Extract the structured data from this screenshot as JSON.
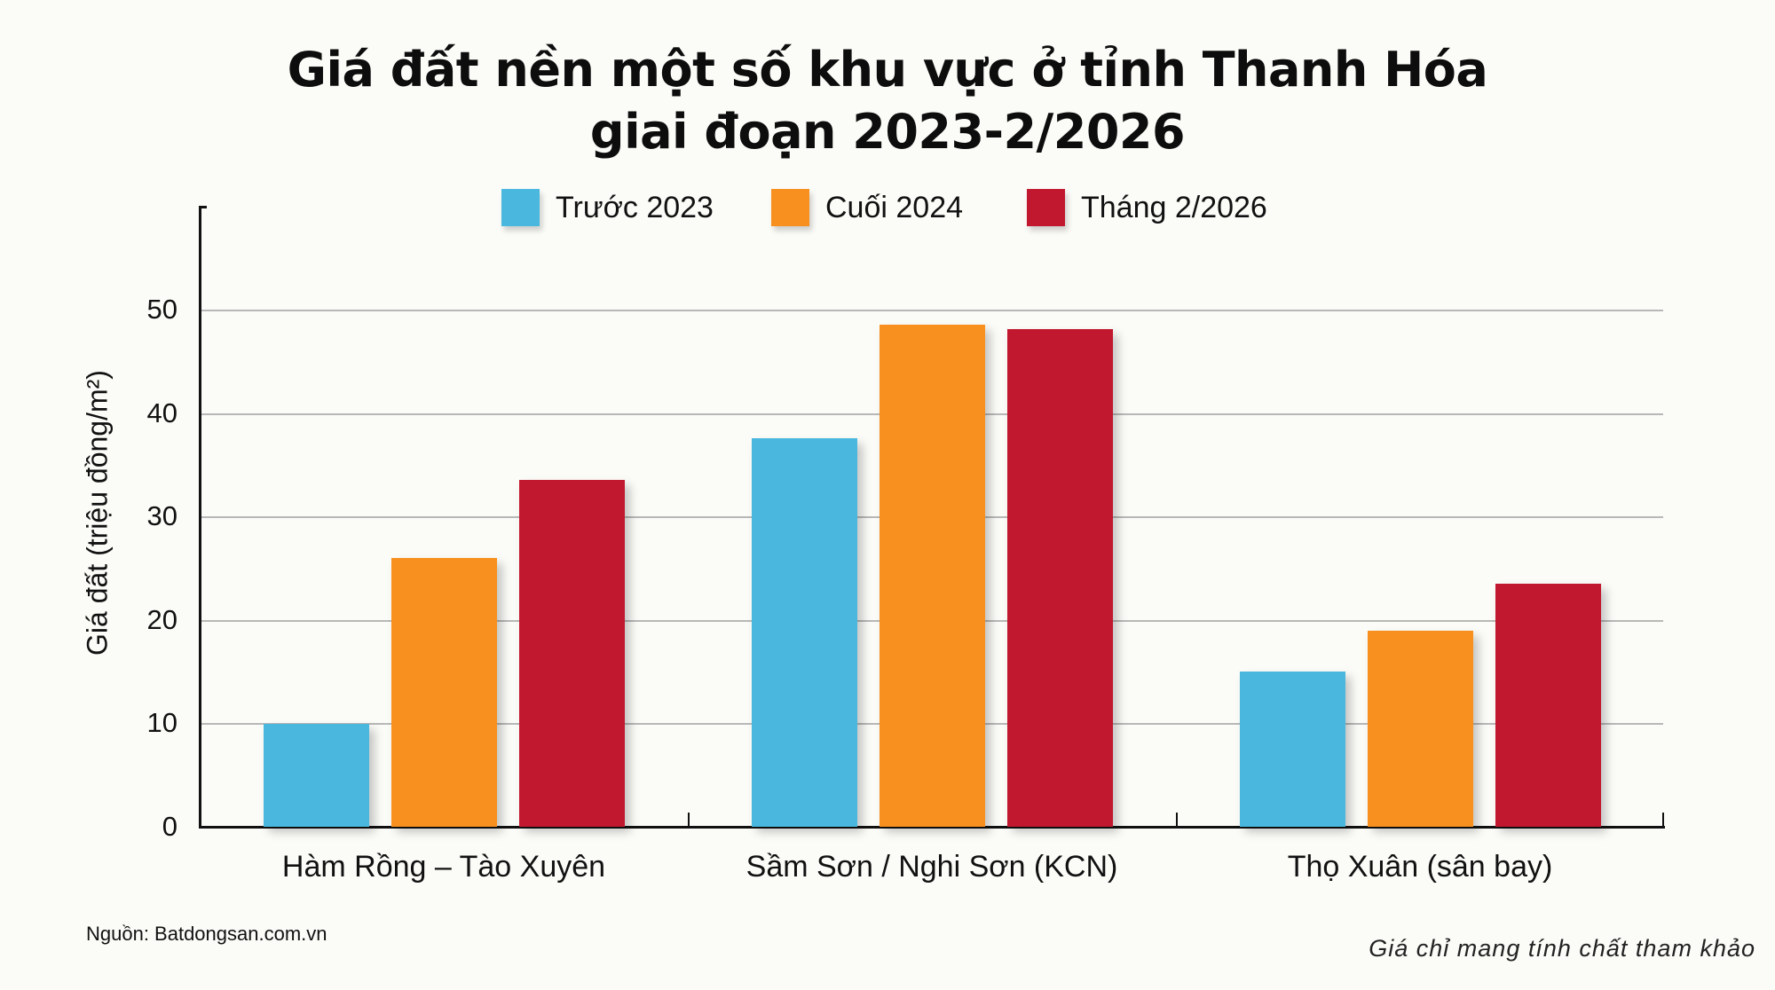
{
  "title": {
    "line1": "Giá đất nền một số khu vực ở tỉnh Thanh Hóa",
    "line2": "giai đoạn 2023-2/2026"
  },
  "legend": [
    {
      "label": "Trước 2023",
      "color": "#4ab8de"
    },
    {
      "label": "Cuối 2024",
      "color": "#f7901e"
    },
    {
      "label": "Tháng 2/2026",
      "color": "#c2182f"
    }
  ],
  "y_axis": {
    "title": "Giá đất (triệu đồng/m²)",
    "ticks": [
      "0",
      "10",
      "20",
      "30",
      "40",
      "50"
    ]
  },
  "x_axis": {
    "labels": [
      "Hàm Rồng – Tào Xuyên",
      "Sầm Sơn / Nghi Sơn (KCN)",
      "Thọ Xuân (sân bay)"
    ]
  },
  "footer": {
    "source": "Nguồn: Batdongsan.com.vn",
    "note": "Giá chỉ mang tính chất tham khảo"
  },
  "chart_data": {
    "type": "bar",
    "title": "Giá đất nền một số khu vực ở tỉnh Thanh Hóa giai đoạn 2023-2/2026",
    "xlabel": "",
    "ylabel": "Giá đất (triệu đồng/m²)",
    "categories": [
      "Hàm Rồng – Tào Xuyên",
      "Sầm Sơn / Nghi Sơn (KCN)",
      "Thọ Xuân (sân bay)"
    ],
    "series": [
      {
        "name": "Trước 2023",
        "color": "#4ab8de",
        "values": [
          10,
          37.6,
          15
        ]
      },
      {
        "name": "Cuối 2024",
        "color": "#f7901e",
        "values": [
          26,
          48.6,
          19
        ]
      },
      {
        "name": "Tháng 2/2026",
        "color": "#c2182f",
        "values": [
          33.6,
          48.2,
          23.5
        ]
      }
    ],
    "ylim": [
      0,
      60
    ],
    "yticks": [
      0,
      10,
      20,
      30,
      40,
      50
    ],
    "grid": true,
    "legend_position": "top",
    "annotations": [
      "Nguồn: Batdongsan.com.vn",
      "Giá chỉ mang tính chất tham khảo"
    ]
  }
}
